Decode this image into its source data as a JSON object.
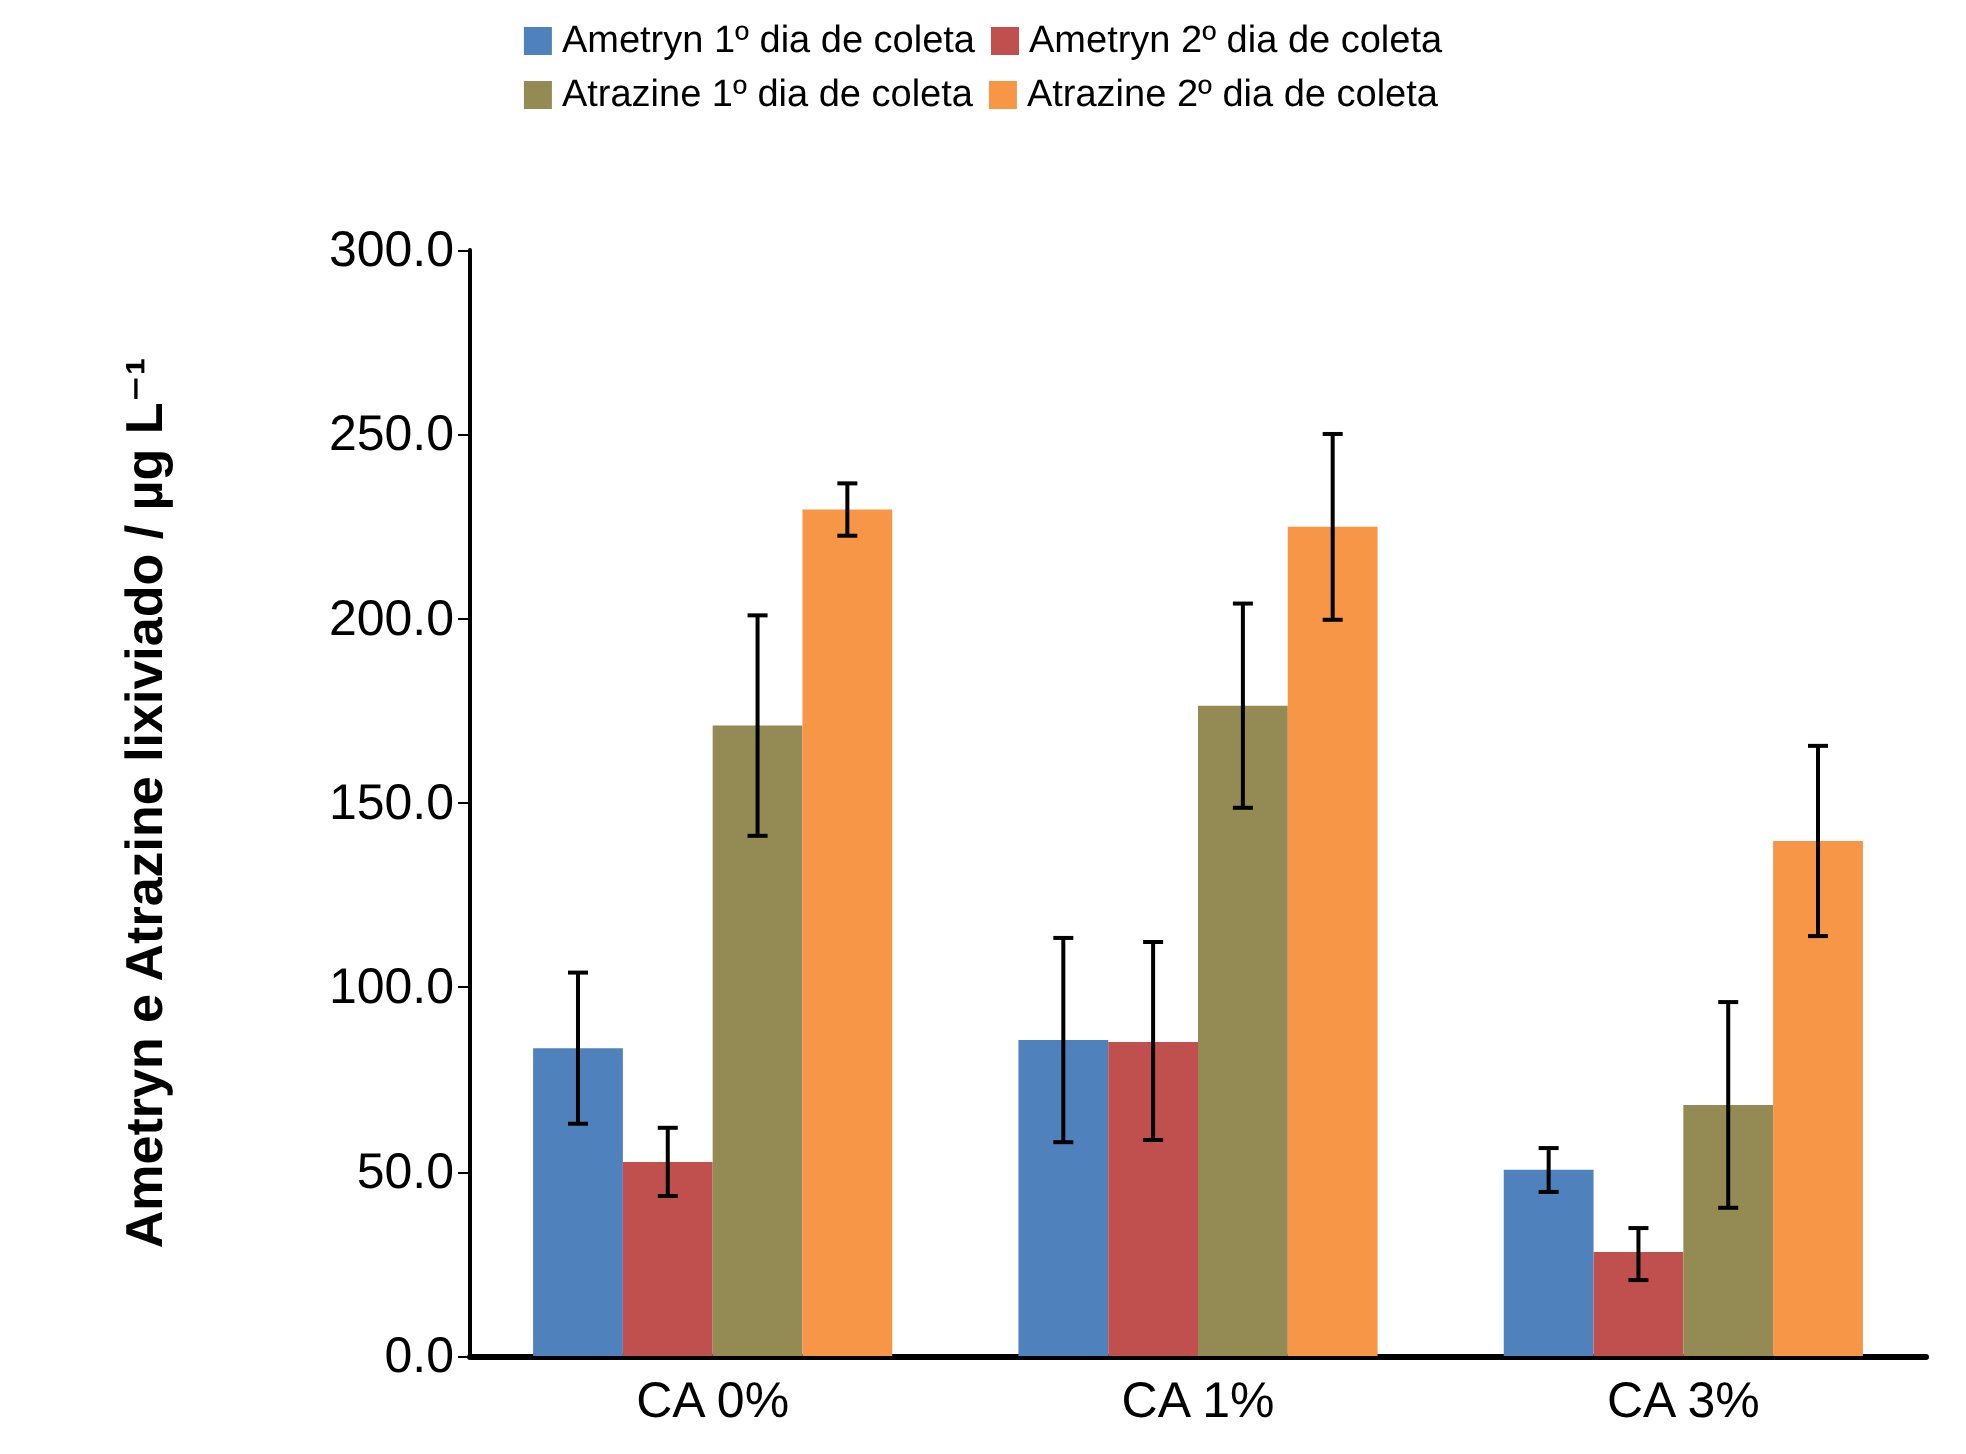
{
  "chart_data": {
    "type": "bar",
    "ylabel": "Ametryn e Atrazine lixiviado / µg L⁻¹",
    "categories": [
      "CA 0%",
      "CA 1%",
      "CA 3%"
    ],
    "series": [
      {
        "name": "Ametryn 1º dia de coleta",
        "color": "#4f81bd",
        "values": [
          83.5,
          85.7,
          50.5
        ],
        "errors": [
          [
            63,
            104
          ],
          [
            58,
            113.4
          ],
          [
            44.5,
            56.4
          ]
        ]
      },
      {
        "name": "Ametryn 2º dia de coleta",
        "color": "#c0504d",
        "values": [
          52.6,
          85.2,
          28.2
        ],
        "errors": [
          [
            43.4,
            61.9
          ],
          [
            58.6,
            112.3
          ],
          [
            20.6,
            34.7
          ]
        ]
      },
      {
        "name": "Atrazine 1º dia de coleta",
        "color": "#948a54",
        "values": [
          171,
          176.4,
          68.1
        ],
        "errors": [
          29.9,
          27.7,
          27.9
        ]
      },
      {
        "name": "Atrazine 2º dia de coleta",
        "color": "#f79646",
        "values": [
          229.6,
          224.9,
          139.7
        ],
        "errors": [
          7.1,
          25.2,
          25.8
        ]
      }
    ],
    "ylim": [
      0,
      300
    ],
    "yticks": [
      {
        "value": 0,
        "label": "0.0"
      },
      {
        "value": 50,
        "label": "50.0"
      },
      {
        "value": 100,
        "label": "100.0"
      },
      {
        "value": 150,
        "label": "150.0"
      },
      {
        "value": 200,
        "label": "200.0"
      },
      {
        "value": 250,
        "label": "250.0"
      },
      {
        "value": 300,
        "label": "300.0"
      }
    ],
    "grid": false,
    "legend": "top"
  }
}
